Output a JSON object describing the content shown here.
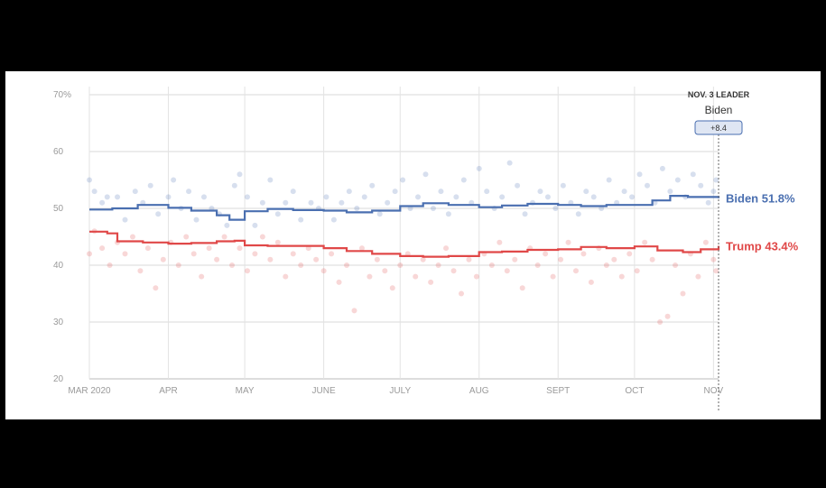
{
  "chart_data": {
    "type": "line",
    "title": "",
    "xlabel": "",
    "ylabel": "",
    "ylim": [
      20,
      70
    ],
    "y_ticks": [
      20,
      30,
      40,
      50,
      60,
      70
    ],
    "y_tick_labels": [
      "20",
      "30",
      "40",
      "50",
      "60",
      "70%"
    ],
    "x_ticks": [
      "2020-03-01",
      "2020-04-01",
      "2020-05-01",
      "2020-06-01",
      "2020-07-01",
      "2020-08-01",
      "2020-09-01",
      "2020-10-01",
      "2020-11-01"
    ],
    "x_tick_labels": [
      "MAR 2020",
      "APR",
      "MAY",
      "JUNE",
      "JULY",
      "AUG",
      "SEPT",
      "OCT",
      "NOV"
    ],
    "grid": true,
    "series": [
      {
        "name": "Biden",
        "color": "#4a6fb0",
        "end_value": 51.8,
        "end_label": "Biden 51.8%",
        "trend": [
          [
            "2020-03-01",
            49.8
          ],
          [
            "2020-03-10",
            50.0
          ],
          [
            "2020-03-20",
            50.6
          ],
          [
            "2020-04-01",
            50.1
          ],
          [
            "2020-04-10",
            49.6
          ],
          [
            "2020-04-20",
            48.8
          ],
          [
            "2020-04-25",
            48.0
          ],
          [
            "2020-05-01",
            49.5
          ],
          [
            "2020-05-10",
            49.9
          ],
          [
            "2020-05-20",
            49.7
          ],
          [
            "2020-06-01",
            49.6
          ],
          [
            "2020-06-10",
            49.3
          ],
          [
            "2020-06-20",
            49.6
          ],
          [
            "2020-07-01",
            50.4
          ],
          [
            "2020-07-10",
            50.9
          ],
          [
            "2020-07-20",
            50.6
          ],
          [
            "2020-08-01",
            50.2
          ],
          [
            "2020-08-10",
            50.5
          ],
          [
            "2020-08-20",
            50.8
          ],
          [
            "2020-09-01",
            50.6
          ],
          [
            "2020-09-10",
            50.4
          ],
          [
            "2020-09-20",
            50.6
          ],
          [
            "2020-10-01",
            50.6
          ],
          [
            "2020-10-08",
            51.4
          ],
          [
            "2020-10-15",
            52.2
          ],
          [
            "2020-10-22",
            52.0
          ],
          [
            "2020-11-03",
            51.8
          ]
        ],
        "polls": [
          [
            "2020-03-01",
            55
          ],
          [
            "2020-03-03",
            53
          ],
          [
            "2020-03-06",
            51
          ],
          [
            "2020-03-08",
            52
          ],
          [
            "2020-03-12",
            52
          ],
          [
            "2020-03-15",
            48
          ],
          [
            "2020-03-19",
            53
          ],
          [
            "2020-03-22",
            51
          ],
          [
            "2020-03-25",
            54
          ],
          [
            "2020-03-28",
            49
          ],
          [
            "2020-04-01",
            52
          ],
          [
            "2020-04-03",
            55
          ],
          [
            "2020-04-06",
            50
          ],
          [
            "2020-04-09",
            53
          ],
          [
            "2020-04-12",
            48
          ],
          [
            "2020-04-15",
            52
          ],
          [
            "2020-04-18",
            50
          ],
          [
            "2020-04-21",
            49
          ],
          [
            "2020-04-24",
            47
          ],
          [
            "2020-04-27",
            54
          ],
          [
            "2020-04-29",
            56
          ],
          [
            "2020-05-02",
            52
          ],
          [
            "2020-05-05",
            47
          ],
          [
            "2020-05-08",
            51
          ],
          [
            "2020-05-11",
            55
          ],
          [
            "2020-05-14",
            49
          ],
          [
            "2020-05-17",
            51
          ],
          [
            "2020-05-20",
            53
          ],
          [
            "2020-05-23",
            48
          ],
          [
            "2020-05-27",
            51
          ],
          [
            "2020-05-30",
            50
          ],
          [
            "2020-06-02",
            52
          ],
          [
            "2020-06-05",
            48
          ],
          [
            "2020-06-08",
            51
          ],
          [
            "2020-06-11",
            53
          ],
          [
            "2020-06-14",
            50
          ],
          [
            "2020-06-17",
            52
          ],
          [
            "2020-06-20",
            54
          ],
          [
            "2020-06-23",
            49
          ],
          [
            "2020-06-26",
            51
          ],
          [
            "2020-06-29",
            53
          ],
          [
            "2020-07-02",
            55
          ],
          [
            "2020-07-05",
            50
          ],
          [
            "2020-07-08",
            52
          ],
          [
            "2020-07-11",
            56
          ],
          [
            "2020-07-14",
            50
          ],
          [
            "2020-07-17",
            53
          ],
          [
            "2020-07-20",
            49
          ],
          [
            "2020-07-23",
            52
          ],
          [
            "2020-07-26",
            55
          ],
          [
            "2020-07-29",
            51
          ],
          [
            "2020-08-01",
            57
          ],
          [
            "2020-08-04",
            53
          ],
          [
            "2020-08-07",
            50
          ],
          [
            "2020-08-10",
            52
          ],
          [
            "2020-08-13",
            58
          ],
          [
            "2020-08-16",
            54
          ],
          [
            "2020-08-19",
            49
          ],
          [
            "2020-08-22",
            51
          ],
          [
            "2020-08-25",
            53
          ],
          [
            "2020-08-28",
            52
          ],
          [
            "2020-08-31",
            50
          ],
          [
            "2020-09-03",
            54
          ],
          [
            "2020-09-06",
            51
          ],
          [
            "2020-09-09",
            49
          ],
          [
            "2020-09-12",
            53
          ],
          [
            "2020-09-15",
            52
          ],
          [
            "2020-09-18",
            50
          ],
          [
            "2020-09-21",
            55
          ],
          [
            "2020-09-24",
            51
          ],
          [
            "2020-09-27",
            53
          ],
          [
            "2020-09-30",
            52
          ],
          [
            "2020-10-03",
            56
          ],
          [
            "2020-10-06",
            54
          ],
          [
            "2020-10-09",
            51
          ],
          [
            "2020-10-12",
            57
          ],
          [
            "2020-10-15",
            53
          ],
          [
            "2020-10-18",
            55
          ],
          [
            "2020-10-21",
            52
          ],
          [
            "2020-10-24",
            56
          ],
          [
            "2020-10-27",
            54
          ],
          [
            "2020-10-30",
            51
          ],
          [
            "2020-11-01",
            53
          ],
          [
            "2020-11-02",
            55
          ]
        ]
      },
      {
        "name": "Trump",
        "color": "#e04848",
        "end_value": 43.4,
        "end_label": "Trump 43.4%",
        "trend": [
          [
            "2020-03-01",
            45.9
          ],
          [
            "2020-03-08",
            45.6
          ],
          [
            "2020-03-12",
            44.2
          ],
          [
            "2020-03-22",
            44.0
          ],
          [
            "2020-04-01",
            43.8
          ],
          [
            "2020-04-10",
            43.9
          ],
          [
            "2020-04-20",
            44.2
          ],
          [
            "2020-04-27",
            44.3
          ],
          [
            "2020-05-01",
            43.5
          ],
          [
            "2020-05-10",
            43.4
          ],
          [
            "2020-05-20",
            43.4
          ],
          [
            "2020-06-01",
            43.0
          ],
          [
            "2020-06-10",
            42.5
          ],
          [
            "2020-06-20",
            42.0
          ],
          [
            "2020-07-01",
            41.6
          ],
          [
            "2020-07-10",
            41.5
          ],
          [
            "2020-07-20",
            41.6
          ],
          [
            "2020-08-01",
            42.3
          ],
          [
            "2020-08-10",
            42.4
          ],
          [
            "2020-08-20",
            42.7
          ],
          [
            "2020-09-01",
            42.8
          ],
          [
            "2020-09-10",
            43.2
          ],
          [
            "2020-09-20",
            43.0
          ],
          [
            "2020-10-01",
            43.3
          ],
          [
            "2020-10-10",
            42.6
          ],
          [
            "2020-10-20",
            42.3
          ],
          [
            "2020-10-27",
            42.8
          ],
          [
            "2020-11-03",
            43.4
          ]
        ],
        "polls": [
          [
            "2020-03-01",
            42
          ],
          [
            "2020-03-03",
            46
          ],
          [
            "2020-03-06",
            43
          ],
          [
            "2020-03-09",
            40
          ],
          [
            "2020-03-12",
            44
          ],
          [
            "2020-03-15",
            42
          ],
          [
            "2020-03-18",
            45
          ],
          [
            "2020-03-21",
            39
          ],
          [
            "2020-03-24",
            43
          ],
          [
            "2020-03-27",
            36
          ],
          [
            "2020-03-30",
            41
          ],
          [
            "2020-04-02",
            44
          ],
          [
            "2020-04-05",
            40
          ],
          [
            "2020-04-08",
            45
          ],
          [
            "2020-04-11",
            42
          ],
          [
            "2020-04-14",
            38
          ],
          [
            "2020-04-17",
            43
          ],
          [
            "2020-04-20",
            41
          ],
          [
            "2020-04-23",
            45
          ],
          [
            "2020-04-26",
            40
          ],
          [
            "2020-04-29",
            43
          ],
          [
            "2020-05-02",
            39
          ],
          [
            "2020-05-05",
            42
          ],
          [
            "2020-05-08",
            45
          ],
          [
            "2020-05-11",
            41
          ],
          [
            "2020-05-14",
            44
          ],
          [
            "2020-05-17",
            38
          ],
          [
            "2020-05-20",
            42
          ],
          [
            "2020-05-23",
            40
          ],
          [
            "2020-05-26",
            43
          ],
          [
            "2020-05-29",
            41
          ],
          [
            "2020-06-01",
            39
          ],
          [
            "2020-06-04",
            42
          ],
          [
            "2020-06-07",
            37
          ],
          [
            "2020-06-10",
            40
          ],
          [
            "2020-06-13",
            32
          ],
          [
            "2020-06-16",
            43
          ],
          [
            "2020-06-19",
            38
          ],
          [
            "2020-06-22",
            41
          ],
          [
            "2020-06-25",
            39
          ],
          [
            "2020-06-28",
            36
          ],
          [
            "2020-07-01",
            40
          ],
          [
            "2020-07-04",
            42
          ],
          [
            "2020-07-07",
            38
          ],
          [
            "2020-07-10",
            41
          ],
          [
            "2020-07-13",
            37
          ],
          [
            "2020-07-16",
            40
          ],
          [
            "2020-07-19",
            43
          ],
          [
            "2020-07-22",
            39
          ],
          [
            "2020-07-25",
            35
          ],
          [
            "2020-07-28",
            41
          ],
          [
            "2020-07-31",
            38
          ],
          [
            "2020-08-03",
            42
          ],
          [
            "2020-08-06",
            40
          ],
          [
            "2020-08-09",
            44
          ],
          [
            "2020-08-12",
            39
          ],
          [
            "2020-08-15",
            41
          ],
          [
            "2020-08-18",
            36
          ],
          [
            "2020-08-21",
            43
          ],
          [
            "2020-08-24",
            40
          ],
          [
            "2020-08-27",
            42
          ],
          [
            "2020-08-30",
            38
          ],
          [
            "2020-09-02",
            41
          ],
          [
            "2020-09-05",
            44
          ],
          [
            "2020-09-08",
            39
          ],
          [
            "2020-09-11",
            42
          ],
          [
            "2020-09-14",
            37
          ],
          [
            "2020-09-17",
            43
          ],
          [
            "2020-09-20",
            40
          ],
          [
            "2020-09-23",
            41
          ],
          [
            "2020-09-26",
            38
          ],
          [
            "2020-09-29",
            42
          ],
          [
            "2020-10-02",
            39
          ],
          [
            "2020-10-05",
            44
          ],
          [
            "2020-10-08",
            41
          ],
          [
            "2020-10-11",
            30
          ],
          [
            "2020-10-14",
            31
          ],
          [
            "2020-10-17",
            40
          ],
          [
            "2020-10-20",
            35
          ],
          [
            "2020-10-23",
            42
          ],
          [
            "2020-10-26",
            38
          ],
          [
            "2020-10-29",
            44
          ],
          [
            "2020-11-01",
            41
          ],
          [
            "2020-11-02",
            39
          ]
        ]
      }
    ],
    "lead_marker": {
      "date": "2020-11-03",
      "title": "NOV. 3 LEADER",
      "leader": "Biden",
      "margin": "+8.4"
    }
  }
}
